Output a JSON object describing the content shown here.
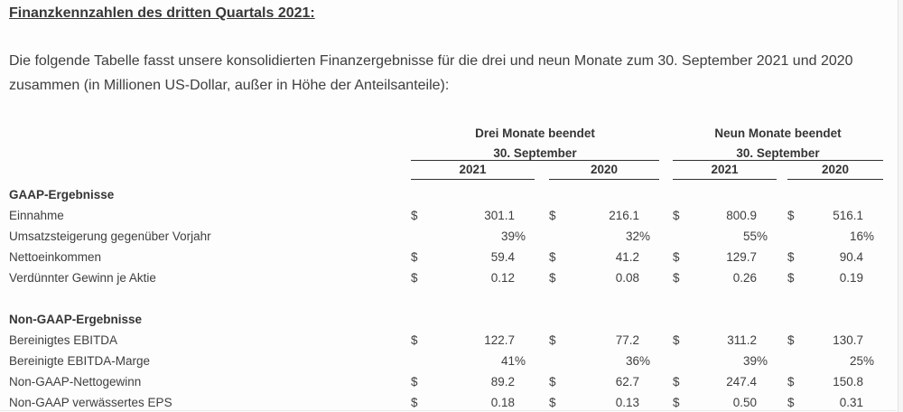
{
  "page": {
    "title": "Finanzkennzahlen des dritten Quartals 2021:",
    "intro": "Die folgende Tabelle fasst unsere konsolidierten Finanzergebnisse für die drei und neun Monate zum 30. September 2021 und 2020 zusammen (in Millionen US-Dollar, außer in Höhe der Anteilsanteile):"
  },
  "table": {
    "groups": [
      {
        "label": "Drei Monate beendet",
        "sublabel": "30. September",
        "years": [
          "2021",
          "2020"
        ]
      },
      {
        "label": "Neun Monate beendet",
        "sublabel": "30. September",
        "years": [
          "2021",
          "2020"
        ]
      }
    ],
    "sections": [
      {
        "header": "GAAP-Ergebnisse",
        "rows": [
          {
            "label": "Einnahme",
            "cells": [
              {
                "prefix": "$",
                "value": "301.1",
                "suffix": ""
              },
              {
                "prefix": "$",
                "value": "216.1",
                "suffix": ""
              },
              {
                "prefix": "$",
                "value": "800.9",
                "suffix": ""
              },
              {
                "prefix": "$",
                "value": "516.1",
                "suffix": ""
              }
            ]
          },
          {
            "label": "Umsatzsteigerung gegenüber Vorjahr",
            "cells": [
              {
                "prefix": "",
                "value": "39",
                "suffix": "%"
              },
              {
                "prefix": "",
                "value": "32",
                "suffix": "%"
              },
              {
                "prefix": "",
                "value": "55",
                "suffix": "%"
              },
              {
                "prefix": "",
                "value": "16",
                "suffix": "%"
              }
            ]
          },
          {
            "label": "Nettoeinkommen",
            "cells": [
              {
                "prefix": "$",
                "value": "59.4",
                "suffix": ""
              },
              {
                "prefix": "$",
                "value": "41.2",
                "suffix": ""
              },
              {
                "prefix": "$",
                "value": "129.7",
                "suffix": ""
              },
              {
                "prefix": "$",
                "value": "90.4",
                "suffix": ""
              }
            ]
          },
          {
            "label": "Verdünnter Gewinn je Aktie",
            "cells": [
              {
                "prefix": "$",
                "value": "0.12",
                "suffix": ""
              },
              {
                "prefix": "$",
                "value": "0.08",
                "suffix": ""
              },
              {
                "prefix": "$",
                "value": "0.26",
                "suffix": ""
              },
              {
                "prefix": "$",
                "value": "0.19",
                "suffix": ""
              }
            ]
          }
        ]
      },
      {
        "header": "Non-GAAP-Ergebnisse",
        "rows": [
          {
            "label": "Bereinigtes EBITDA",
            "cells": [
              {
                "prefix": "$",
                "value": "122.7",
                "suffix": ""
              },
              {
                "prefix": "$",
                "value": "77.2",
                "suffix": ""
              },
              {
                "prefix": "$",
                "value": "311.2",
                "suffix": ""
              },
              {
                "prefix": "$",
                "value": "130.7",
                "suffix": ""
              }
            ]
          },
          {
            "label": "Bereinigte EBITDA-Marge",
            "cells": [
              {
                "prefix": "",
                "value": "41",
                "suffix": "%"
              },
              {
                "prefix": "",
                "value": "36",
                "suffix": "%"
              },
              {
                "prefix": "",
                "value": "39",
                "suffix": "%"
              },
              {
                "prefix": "",
                "value": "25",
                "suffix": "%"
              }
            ]
          },
          {
            "label": "Non-GAAP-Nettogewinn",
            "cells": [
              {
                "prefix": "$",
                "value": "89.2",
                "suffix": ""
              },
              {
                "prefix": "$",
                "value": "62.7",
                "suffix": ""
              },
              {
                "prefix": "$",
                "value": "247.4",
                "suffix": ""
              },
              {
                "prefix": "$",
                "value": "150.8",
                "suffix": ""
              }
            ]
          },
          {
            "label": "Non-GAAP verwässertes EPS",
            "cells": [
              {
                "prefix": "$",
                "value": "0.18",
                "suffix": ""
              },
              {
                "prefix": "$",
                "value": "0.13",
                "suffix": ""
              },
              {
                "prefix": "$",
                "value": "0.50",
                "suffix": ""
              },
              {
                "prefix": "$",
                "value": "0.31",
                "suffix": ""
              }
            ]
          }
        ]
      }
    ]
  },
  "colors": {
    "text": "#3e3e3e",
    "heading_text": "#353535",
    "table_line": "#2f2f2f",
    "background": "#fdfdfd",
    "bottom_rule": "#e9e9e9",
    "right_strip": "#f5f5f5"
  }
}
